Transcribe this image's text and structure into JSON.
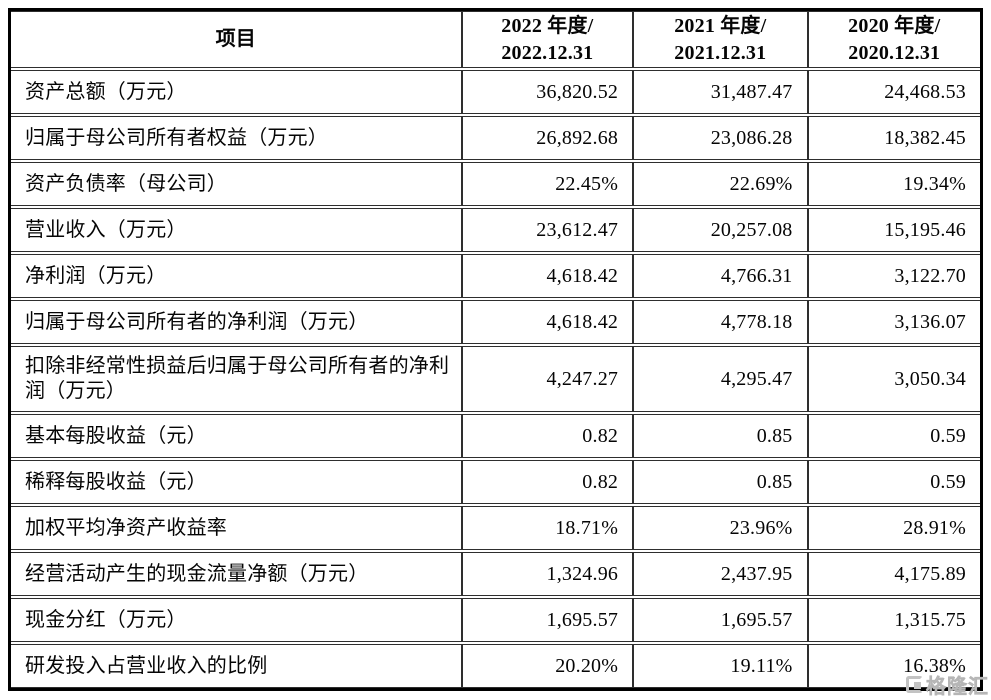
{
  "table": {
    "header": {
      "item": "项目",
      "y2022": {
        "line1": "2022 年度/",
        "line2": "2022.12.31"
      },
      "y2021": {
        "line1": "2021 年度/",
        "line2": "2021.12.31"
      },
      "y2020": {
        "line1": "2020 年度/",
        "line2": "2020.12.31"
      }
    },
    "rows": [
      {
        "label": "资产总额（万元）",
        "v2022": "36,820.52",
        "v2021": "31,487.47",
        "v2020": "24,468.53"
      },
      {
        "label": "归属于母公司所有者权益（万元）",
        "v2022": "26,892.68",
        "v2021": "23,086.28",
        "v2020": "18,382.45"
      },
      {
        "label": "资产负债率（母公司）",
        "v2022": "22.45%",
        "v2021": "22.69%",
        "v2020": "19.34%"
      },
      {
        "label": "营业收入（万元）",
        "v2022": "23,612.47",
        "v2021": "20,257.08",
        "v2020": "15,195.46"
      },
      {
        "label": "净利润（万元）",
        "v2022": "4,618.42",
        "v2021": "4,766.31",
        "v2020": "3,122.70"
      },
      {
        "label": "归属于母公司所有者的净利润（万元）",
        "v2022": "4,618.42",
        "v2021": "4,778.18",
        "v2020": "3,136.07"
      },
      {
        "label": "扣除非经常性损益后归属于母公司所有者的净利润（万元）",
        "v2022": "4,247.27",
        "v2021": "4,295.47",
        "v2020": "3,050.34"
      },
      {
        "label": "基本每股收益（元）",
        "v2022": "0.82",
        "v2021": "0.85",
        "v2020": "0.59"
      },
      {
        "label": "稀释每股收益（元）",
        "v2022": "0.82",
        "v2021": "0.85",
        "v2020": "0.59"
      },
      {
        "label": "加权平均净资产收益率",
        "v2022": "18.71%",
        "v2021": "23.96%",
        "v2020": "28.91%"
      },
      {
        "label": "经营活动产生的现金流量净额（万元）",
        "v2022": "1,324.96",
        "v2021": "2,437.95",
        "v2020": "4,175.89"
      },
      {
        "label": "现金分红（万元）",
        "v2022": "1,695.57",
        "v2021": "1,695.57",
        "v2020": "1,315.75"
      },
      {
        "label": "研发投入占营业收入的比例",
        "v2022": "20.20%",
        "v2021": "19.11%",
        "v2020": "16.38%"
      }
    ]
  },
  "watermark": {
    "text": "格隆汇"
  },
  "colors": {
    "border_outer": "#000000",
    "border_inner": "#2e2e2e",
    "text": "#050505",
    "watermark": "#c3c3c3"
  }
}
